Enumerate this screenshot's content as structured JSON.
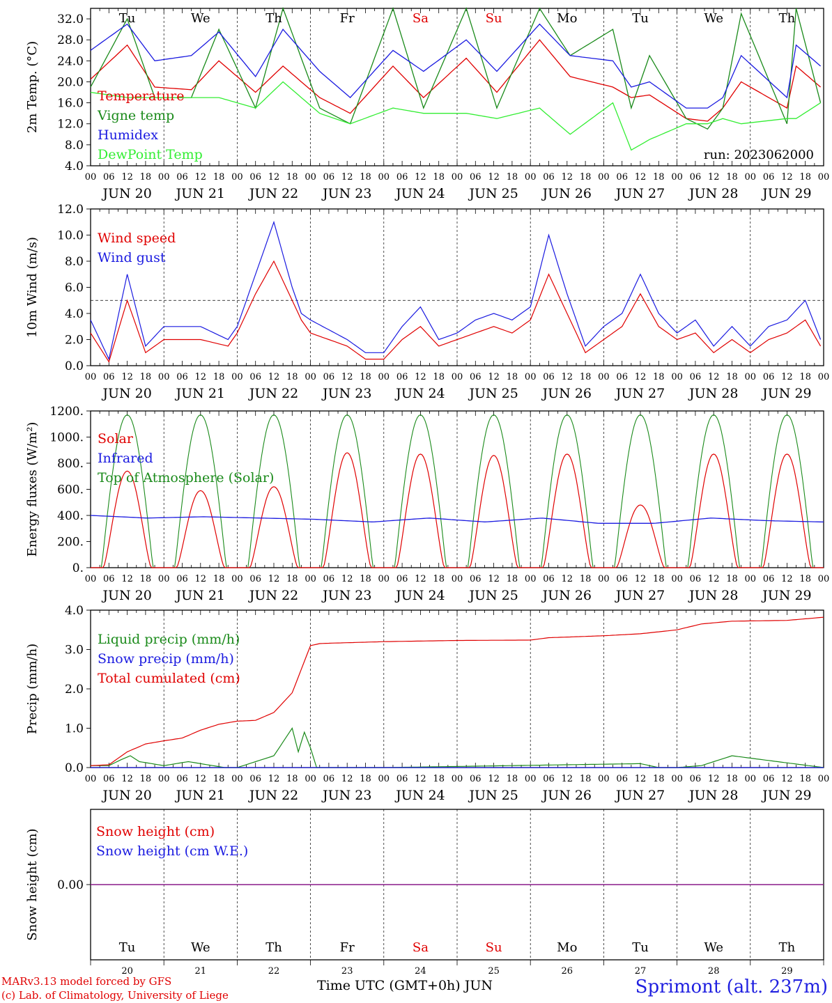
{
  "colors": {
    "red": "#e00000",
    "green": "#1a8a1a",
    "blue": "#1a1ae0",
    "light_green": "#33ee33",
    "purple": "#8a1a8a",
    "weekend": "#e00000"
  },
  "time_axis": {
    "days": [
      "JUN 20",
      "JUN 21",
      "JUN 22",
      "JUN 23",
      "JUN 24",
      "JUN 25",
      "JUN 26",
      "JUN 27",
      "JUN 28",
      "JUN 29"
    ],
    "hour_ticks": [
      "00",
      "06",
      "12",
      "18"
    ],
    "end_tick": "00",
    "weekdays": [
      "Tu",
      "We",
      "Th",
      "Fr",
      "Sa",
      "Su",
      "Mo",
      "Tu",
      "We",
      "Th"
    ],
    "weekend_days": [
      "Sa",
      "Su"
    ],
    "day_numbers": [
      "20",
      "21",
      "22",
      "23",
      "24",
      "25",
      "26",
      "27",
      "28",
      "29"
    ],
    "title": "Time UTC (GMT+0h)",
    "month": "JUN"
  },
  "run_label": "run: 2023062000",
  "footer": {
    "model": "MARv3.13 model forced by GFS",
    "lab": "(c) Lab. of Climatology, University of Liege",
    "location": "Sprimont (alt. 237m)"
  },
  "chart_data": [
    {
      "type": "line",
      "ylabel": "2m Temp. (°C)",
      "ylim": [
        4,
        34
      ],
      "yticks": [
        "4.0",
        "8.0",
        "12.0",
        "16.0",
        "20.0",
        "24.0",
        "28.0",
        "32.0"
      ],
      "x": [
        0,
        12,
        21,
        33,
        42,
        54,
        63,
        75,
        85,
        99,
        109,
        123,
        133,
        147,
        157,
        171,
        177,
        183,
        195,
        202,
        207,
        213,
        228,
        231,
        239
      ],
      "series": [
        {
          "name": "Temperature",
          "color": "red",
          "values": [
            20.5,
            27,
            19,
            18.5,
            24,
            18,
            23,
            17,
            14,
            23,
            17,
            24.5,
            18,
            28,
            21,
            19,
            17,
            17.5,
            13,
            12.5,
            15,
            20,
            15,
            23,
            19
          ]
        },
        {
          "name": "Vigne temp",
          "color": "green",
          "values": [
            19,
            32,
            17,
            17,
            30,
            15,
            34,
            15,
            12,
            34,
            15,
            34,
            15,
            34,
            25,
            30,
            15,
            25,
            13,
            11,
            15,
            33,
            12,
            34,
            16
          ]
        },
        {
          "name": "Humidex",
          "color": "blue",
          "values": [
            26,
            31,
            24,
            25,
            29.5,
            21,
            30,
            22,
            17,
            26,
            22,
            28,
            22,
            31,
            25,
            24,
            19,
            20,
            15,
            15,
            17,
            25,
            17,
            27,
            23
          ]
        },
        {
          "name": "DewPoint Temp",
          "color": "light_green",
          "values": [
            18,
            17,
            17,
            17,
            17,
            15,
            20,
            14,
            12,
            15,
            14,
            14,
            13,
            15,
            10,
            16,
            7,
            9,
            12,
            12,
            13,
            12,
            13,
            13,
            16
          ]
        }
      ]
    },
    {
      "type": "line",
      "ylabel": "10m Wind (m/s)",
      "ylim": [
        0,
        12
      ],
      "yticks": [
        "0.0",
        "2.0",
        "4.0",
        "6.0",
        "8.0",
        "10.0",
        "12.0"
      ],
      "reference_line": 5,
      "x": [
        0,
        6,
        12,
        18,
        24,
        30,
        36,
        45,
        48,
        54,
        60,
        66,
        69,
        72,
        84,
        90,
        96,
        102,
        108,
        114,
        120,
        126,
        132,
        138,
        144,
        150,
        156,
        162,
        168,
        174,
        180,
        186,
        192,
        198,
        204,
        210,
        216,
        222,
        228,
        234,
        239
      ],
      "series": [
        {
          "name": "Wind speed",
          "color": "red",
          "values": [
            2.5,
            0.3,
            5,
            1,
            2,
            2,
            2,
            1.5,
            2.5,
            5.5,
            8,
            5,
            3.5,
            2.5,
            1.5,
            0.5,
            0.5,
            2,
            3,
            1.5,
            2,
            2.5,
            3,
            2.5,
            3.5,
            7,
            4,
            1,
            2,
            3,
            5.5,
            3,
            2,
            2.5,
            1,
            2,
            1,
            2,
            2.5,
            3.5,
            1.5
          ]
        },
        {
          "name": "Wind gust",
          "color": "blue",
          "values": [
            3.5,
            0.5,
            7,
            1.5,
            3,
            3,
            3,
            2,
            3,
            7,
            11,
            6,
            4,
            3.5,
            2,
            1,
            1,
            3,
            4.5,
            2,
            2.5,
            3.5,
            4,
            3.5,
            4.5,
            10,
            5.5,
            1.5,
            3,
            4,
            7,
            4,
            2.5,
            3.5,
            1.5,
            3,
            1.5,
            3,
            3.5,
            5,
            2
          ]
        }
      ]
    },
    {
      "type": "line",
      "ylabel": "Energy fluxes (W/m²)",
      "ylim": [
        0,
        1200
      ],
      "yticks": [
        "0.",
        "200.",
        "400.",
        "600.",
        "800.",
        "1000.",
        "1200."
      ],
      "day_peaks": {
        "Solar": [
          740,
          590,
          620,
          880,
          870,
          860,
          870,
          480,
          870,
          870
        ],
        "Top of Atmosphere (Solar)": [
          1170,
          1170,
          1170,
          1170,
          1170,
          1170,
          1170,
          1170,
          1170,
          1170
        ]
      },
      "series": [
        {
          "name": "Solar",
          "color": "red"
        },
        {
          "name": "Infrared",
          "color": "blue",
          "values": [
            400,
            380,
            390,
            380,
            370,
            350,
            380,
            350,
            380,
            340,
            340,
            380,
            360,
            350
          ]
        },
        {
          "name": "Top of Atmosphere (Solar)",
          "color": "green"
        }
      ]
    },
    {
      "type": "line",
      "ylabel": "Precip (mm/h)",
      "ylim": [
        0,
        4
      ],
      "yticks": [
        "0.0",
        "1.0",
        "2.0",
        "3.0",
        "4.0"
      ],
      "series": [
        {
          "name": "Liquid precip (mm/h)",
          "color": "green",
          "x": [
            0,
            6,
            10,
            13,
            16,
            20,
            24,
            28,
            32,
            36,
            40,
            44,
            48,
            54,
            60,
            66,
            68,
            70,
            72,
            74,
            76,
            80,
            96,
            180,
            186,
            192,
            200,
            210,
            240
          ],
          "values": [
            0.05,
            0.05,
            0.2,
            0.3,
            0.15,
            0.1,
            0.05,
            0.1,
            0.15,
            0.1,
            0.05,
            0,
            0,
            0.15,
            0.3,
            1,
            0.4,
            0.9,
            0.5,
            0,
            0,
            0,
            0,
            0.1,
            0,
            0,
            0.05,
            0.3,
            0
          ]
        },
        {
          "name": "Snow precip (mm/h)",
          "color": "blue",
          "x": [
            0,
            240
          ],
          "values": [
            0,
            0
          ]
        },
        {
          "name": "Total cumulated (cm)",
          "color": "red",
          "x": [
            0,
            6,
            12,
            18,
            24,
            30,
            36,
            42,
            48,
            54,
            60,
            66,
            72,
            75,
            78,
            96,
            120,
            144,
            150,
            168,
            180,
            192,
            200,
            210,
            228,
            240
          ],
          "values": [
            0.05,
            0.07,
            0.4,
            0.6,
            0.68,
            0.75,
            0.95,
            1.1,
            1.18,
            1.2,
            1.4,
            1.9,
            3.1,
            3.15,
            3.16,
            3.2,
            3.23,
            3.24,
            3.3,
            3.35,
            3.4,
            3.5,
            3.65,
            3.72,
            3.74,
            3.82
          ]
        }
      ]
    },
    {
      "type": "line",
      "ylabel": "Snow height (cm)",
      "yticks": [
        "0.00"
      ],
      "series": [
        {
          "name": "Snow height (cm)",
          "color": "red",
          "x": [
            0,
            240
          ],
          "values": [
            0,
            0
          ]
        },
        {
          "name": "Snow height (cm W.E.)",
          "color": "blue",
          "x": [
            0,
            240
          ],
          "values": [
            0,
            0
          ]
        }
      ]
    }
  ]
}
